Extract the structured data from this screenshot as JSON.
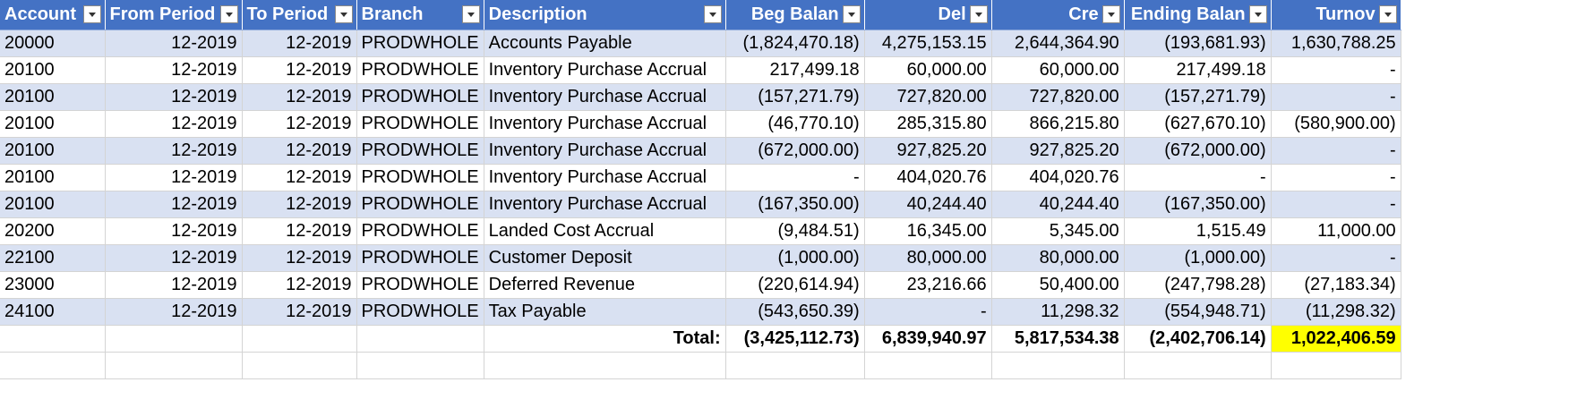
{
  "table": {
    "headers": [
      "Account",
      "From Period",
      "To Period",
      "Branch",
      "Description",
      "Beg Balan",
      "Del",
      "Cre",
      "Ending Balan",
      "Turnov"
    ],
    "rows": [
      [
        "20000",
        "12-2019",
        "12-2019",
        "PRODWHOLE",
        "Accounts Payable",
        "(1,824,470.18)",
        "4,275,153.15",
        "2,644,364.90",
        "(193,681.93)",
        "1,630,788.25"
      ],
      [
        "20100",
        "12-2019",
        "12-2019",
        "PRODWHOLE",
        "Inventory Purchase Accrual",
        "217,499.18",
        "60,000.00",
        "60,000.00",
        "217,499.18",
        "-"
      ],
      [
        "20100",
        "12-2019",
        "12-2019",
        "PRODWHOLE",
        "Inventory Purchase Accrual",
        "(157,271.79)",
        "727,820.00",
        "727,820.00",
        "(157,271.79)",
        "-"
      ],
      [
        "20100",
        "12-2019",
        "12-2019",
        "PRODWHOLE",
        "Inventory Purchase Accrual",
        "(46,770.10)",
        "285,315.80",
        "866,215.80",
        "(627,670.10)",
        "(580,900.00)"
      ],
      [
        "20100",
        "12-2019",
        "12-2019",
        "PRODWHOLE",
        "Inventory Purchase Accrual",
        "(672,000.00)",
        "927,825.20",
        "927,825.20",
        "(672,000.00)",
        "-"
      ],
      [
        "20100",
        "12-2019",
        "12-2019",
        "PRODWHOLE",
        "Inventory Purchase Accrual",
        "-",
        "404,020.76",
        "404,020.76",
        "-",
        "-"
      ],
      [
        "20100",
        "12-2019",
        "12-2019",
        "PRODWHOLE",
        "Inventory Purchase Accrual",
        "(167,350.00)",
        "40,244.40",
        "40,244.40",
        "(167,350.00)",
        "-"
      ],
      [
        "20200",
        "12-2019",
        "12-2019",
        "PRODWHOLE",
        "Landed Cost Accrual",
        "(9,484.51)",
        "16,345.00",
        "5,345.00",
        "1,515.49",
        "11,000.00"
      ],
      [
        "22100",
        "12-2019",
        "12-2019",
        "PRODWHOLE",
        "Customer Deposit",
        "(1,000.00)",
        "80,000.00",
        "80,000.00",
        "(1,000.00)",
        "-"
      ],
      [
        "23000",
        "12-2019",
        "12-2019",
        "PRODWHOLE",
        "Deferred Revenue",
        "(220,614.94)",
        "23,216.66",
        "50,400.00",
        "(247,798.28)",
        "(27,183.34)"
      ],
      [
        "24100",
        "12-2019",
        "12-2019",
        "PRODWHOLE",
        "Tax Payable",
        "(543,650.39)",
        "-",
        "11,298.32",
        "(554,948.71)",
        "(11,298.32)"
      ]
    ],
    "total": {
      "label": "Total:",
      "values": [
        "(3,425,112.73)",
        "6,839,940.97",
        "5,817,534.38",
        "(2,402,706.14)",
        "1,022,406.59"
      ]
    }
  },
  "colors": {
    "header_bg": "#4472c4",
    "band_bg": "#d9e1f2",
    "highlight": "#ffff00"
  }
}
